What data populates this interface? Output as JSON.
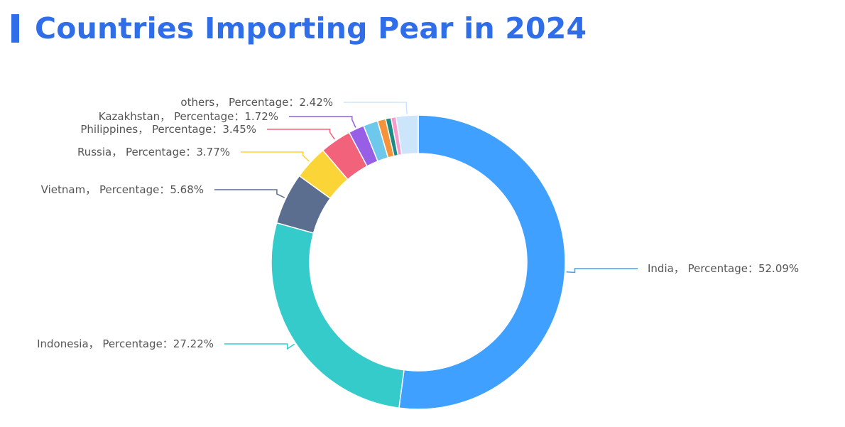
{
  "title": "Countries Importing Pear in 2024",
  "accent_color": "#2f6ee8",
  "chart_data": {
    "type": "pie",
    "donut": true,
    "label_template": "{name}， Percentage：{value}%",
    "slices": [
      {
        "name": "India",
        "value": 52.09,
        "color": "#3fa0ff"
      },
      {
        "name": "Indonesia",
        "value": 27.22,
        "color": "#36cbcb"
      },
      {
        "name": "Vietnam",
        "value": 5.68,
        "color": "#5b6e8f"
      },
      {
        "name": "Russia",
        "value": 3.77,
        "color": "#fbd437"
      },
      {
        "name": "Philippines",
        "value": 3.45,
        "color": "#f2637b"
      },
      {
        "name": "Kazakhstan",
        "value": 1.72,
        "color": "#975fe5"
      },
      {
        "name": "",
        "value": 1.6,
        "color": "#6ec8ec"
      },
      {
        "name": "",
        "value": 0.9,
        "color": "#f5923a"
      },
      {
        "name": "",
        "value": 0.6,
        "color": "#1d8a84"
      },
      {
        "name": "",
        "value": 0.55,
        "color": "#f59ccc"
      },
      {
        "name": "others",
        "value": 2.42,
        "color": "#cde5fb"
      }
    ]
  }
}
